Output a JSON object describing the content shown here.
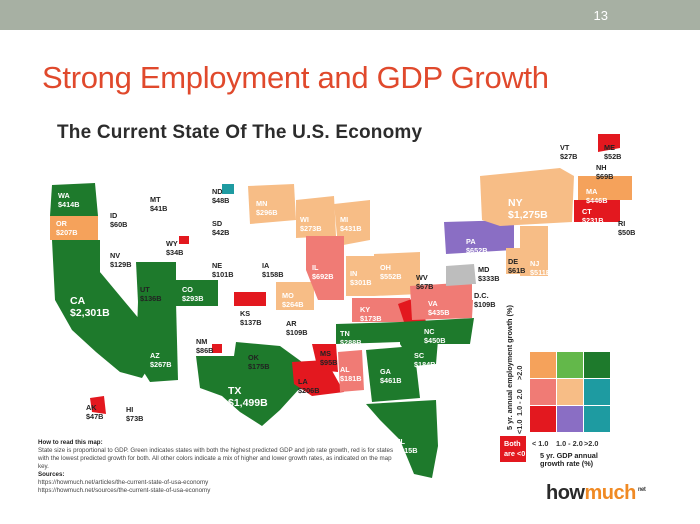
{
  "slide": {
    "page_number": "13",
    "title": "Strong Employment and GDP Growth"
  },
  "infographic": {
    "title": "The Current State Of The U.S. Economy"
  },
  "colors": {
    "green": "#1e7a2c",
    "light_green": "#63b84a",
    "orange": "#f5a25b",
    "light_orange": "#f7bd86",
    "pink_red": "#f07b75",
    "red": "#e3181f",
    "purple": "#8a6ec4",
    "teal": "#1e9ba1",
    "gray": "#bdbdbd"
  },
  "states": [
    {
      "code": "WA",
      "gdp": "$414B"
    },
    {
      "code": "OR",
      "gdp": "$207B"
    },
    {
      "code": "CA",
      "gdp": "$2,301B"
    },
    {
      "code": "ID",
      "gdp": "$60B"
    },
    {
      "code": "NV",
      "gdp": "$129B"
    },
    {
      "code": "MT",
      "gdp": "$41B"
    },
    {
      "code": "WY",
      "gdp": "$34B"
    },
    {
      "code": "UT",
      "gdp": "$136B"
    },
    {
      "code": "AZ",
      "gdp": "$267B"
    },
    {
      "code": "CO",
      "gdp": "$293B"
    },
    {
      "code": "NM",
      "gdp": "$86B"
    },
    {
      "code": "ND",
      "gdp": "$48B"
    },
    {
      "code": "SD",
      "gdp": "$42B"
    },
    {
      "code": "NE",
      "gdp": "$101B"
    },
    {
      "code": "KS",
      "gdp": "$137B"
    },
    {
      "code": "OK",
      "gdp": "$175B"
    },
    {
      "code": "TX",
      "gdp": "$1,499B"
    },
    {
      "code": "MN",
      "gdp": "$296B"
    },
    {
      "code": "IA",
      "gdp": "$158B"
    },
    {
      "code": "MO",
      "gdp": "$264B"
    },
    {
      "code": "AR",
      "gdp": "$109B"
    },
    {
      "code": "LA",
      "gdp": "$206B"
    },
    {
      "code": "WI",
      "gdp": "$273B"
    },
    {
      "code": "IL",
      "gdp": "$692B"
    },
    {
      "code": "MI",
      "gdp": "$431B"
    },
    {
      "code": "IN",
      "gdp": "$301B"
    },
    {
      "code": "OH",
      "gdp": "$552B"
    },
    {
      "code": "KY",
      "gdp": "$173B"
    },
    {
      "code": "TN",
      "gdp": "$288B"
    },
    {
      "code": "MS",
      "gdp": "$95B"
    },
    {
      "code": "AL",
      "gdp": "$181B"
    },
    {
      "code": "GA",
      "gdp": "$461B"
    },
    {
      "code": "FL",
      "gdp": "$815B"
    },
    {
      "code": "SC",
      "gdp": "$184B"
    },
    {
      "code": "NC",
      "gdp": "$450B"
    },
    {
      "code": "VA",
      "gdp": "$435B"
    },
    {
      "code": "WV",
      "gdp": "$67B"
    },
    {
      "code": "PA",
      "gdp": "$652B"
    },
    {
      "code": "NY",
      "gdp": "$1,275B"
    },
    {
      "code": "NJ",
      "gdp": "$511B"
    },
    {
      "code": "DE",
      "gdp": "$61B"
    },
    {
      "code": "MD",
      "gdp": "$333B"
    },
    {
      "code": "D.C.",
      "gdp": "$109B"
    },
    {
      "code": "VT",
      "gdp": "$27B"
    },
    {
      "code": "NH",
      "gdp": "$69B"
    },
    {
      "code": "ME",
      "gdp": "$52B"
    },
    {
      "code": "MA",
      "gdp": "$446B"
    },
    {
      "code": "CT",
      "gdp": "$231B"
    },
    {
      "code": "RI",
      "gdp": "$50B"
    },
    {
      "code": "AK",
      "gdp": "$47B"
    },
    {
      "code": "HI",
      "gdp": "$73B"
    }
  ],
  "legend": {
    "y_axis_title": "5 yr. annual employment growth (%)",
    "y_ticks": [
      "<1.0",
      "1.0 - 2.0",
      ">2.0"
    ],
    "x_ticks": [
      "< 1.0",
      "1.0 - 2.0",
      ">2.0"
    ],
    "x_axis_title": "5 yr. GDP annual growth rate (%)",
    "both_label": "Both are <0",
    "grid_colors": [
      [
        "#f5a25b",
        "#63b84a",
        "#1e7a2c"
      ],
      [
        "#f07b75",
        "#f7bd86",
        "#1e9ba1"
      ],
      [
        "#e3181f",
        "#8a6ec4",
        "#1e9ba1"
      ]
    ]
  },
  "notes": {
    "how_to_read_title": "How to read this map:",
    "how_to_read_text": "State size is proportional to GDP. Green indicates states with both the highest predicted GDP and job rate growth, red is for states with the lowest predicted growth for both. All other colors indicate a mix of higher and lower growth rates, as indicated on the map key.",
    "sources_title": "Sources:",
    "source_1": "https://howmuch.net/articles/the-current-state-of-usa-economy",
    "source_2": "https://howmuch.net/sources/the-current-state-of-usa-economy"
  },
  "logo": {
    "part1": "how",
    "part2": "much",
    "suffix": "net"
  }
}
